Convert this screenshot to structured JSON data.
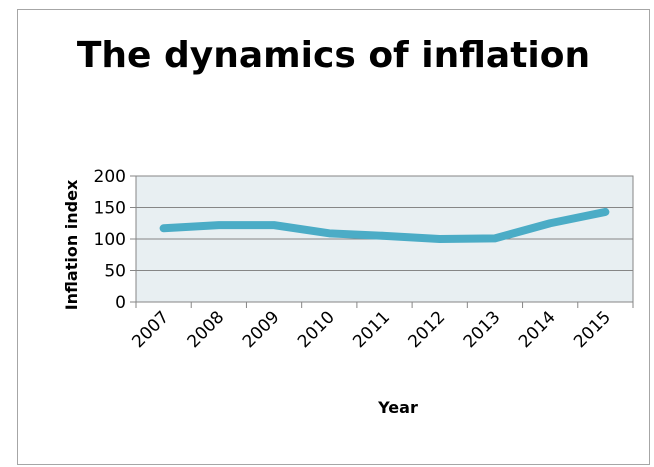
{
  "chart_data": {
    "type": "line",
    "title": "The dynamics of inflation",
    "xlabel": "Year",
    "ylabel": "Inflation index",
    "categories": [
      "2007",
      "2008",
      "2009",
      "2010",
      "2011",
      "2012",
      "2013",
      "2014",
      "2015"
    ],
    "series": [
      {
        "values": [
          117,
          122,
          122,
          109,
          105,
          100,
          101,
          125,
          143
        ]
      }
    ],
    "ylim": [
      0,
      200
    ],
    "yticks": [
      0,
      50,
      100,
      150,
      200
    ],
    "grid": true,
    "legend": "none",
    "colors": {
      "line": "#4bacc6",
      "plot_background": "#e8eff2",
      "grid": "#868686",
      "frame": "#a6a6a6"
    }
  }
}
